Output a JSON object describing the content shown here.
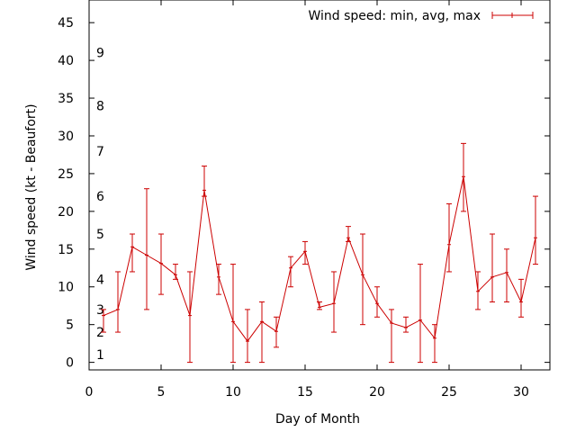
{
  "chart_data": {
    "type": "line",
    "xlabel": "Day of Month",
    "ylabel": "Wind speed (kt - Beaufort)",
    "xlim": [
      0,
      32
    ],
    "ylim": [
      -1,
      48
    ],
    "x_ticks": [
      0,
      5,
      10,
      15,
      20,
      25,
      30
    ],
    "y_ticks": [
      0,
      5,
      10,
      15,
      20,
      25,
      30,
      35,
      40,
      45
    ],
    "grid": false,
    "legend_position": "top-right",
    "beaufort_labels": [
      {
        "label": "1",
        "y": 1
      },
      {
        "label": "2",
        "y": 4
      },
      {
        "label": "3",
        "y": 7
      },
      {
        "label": "4",
        "y": 11
      },
      {
        "label": "5",
        "y": 17
      },
      {
        "label": "6",
        "y": 22
      },
      {
        "label": "7",
        "y": 28
      },
      {
        "label": "8",
        "y": 34
      },
      {
        "label": "9",
        "y": 41
      }
    ],
    "series": [
      {
        "name": "Wind speed: min, avg, max",
        "color": "#cc0000",
        "x": [
          1,
          2,
          3,
          4,
          5,
          6,
          7,
          8,
          9,
          10,
          11,
          12,
          13,
          14,
          15,
          16,
          17,
          18,
          19,
          20,
          21,
          22,
          23,
          24,
          25,
          26,
          27,
          28,
          29,
          30,
          31
        ],
        "avg": [
          6.2,
          7.0,
          15.3,
          14.2,
          13.1,
          11.6,
          6.2,
          22.8,
          11.3,
          5.4,
          2.8,
          5.4,
          4.1,
          12.5,
          14.7,
          7.3,
          7.8,
          16.5,
          11.6,
          7.8,
          5.2,
          4.6,
          5.6,
          3.2,
          15.6,
          24.6,
          9.4,
          11.3,
          11.9,
          8.0,
          16.5
        ],
        "min": [
          4,
          4,
          12,
          7,
          9,
          11,
          0,
          22,
          9,
          0,
          0,
          0,
          2,
          10,
          13,
          7,
          4,
          16,
          5,
          6,
          0,
          4,
          0,
          0,
          12,
          20,
          7,
          8,
          8,
          6,
          13
        ],
        "max": [
          7,
          12,
          17,
          23,
          17,
          13,
          12,
          26,
          13,
          13,
          7,
          8,
          6,
          14,
          16,
          8,
          12,
          18,
          17,
          10,
          7,
          6,
          13,
          5,
          21,
          29,
          12,
          17,
          15,
          11,
          22
        ]
      }
    ]
  }
}
